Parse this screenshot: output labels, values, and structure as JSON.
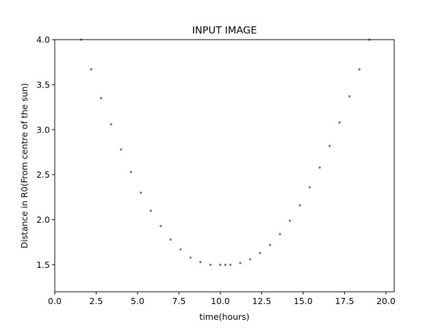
{
  "chart_data": {
    "type": "scatter",
    "title": "INPUT IMAGE",
    "xlabel": "time(hours)",
    "ylabel": "Distance in R0(From centre of the sun)",
    "xlim": [
      0.0,
      20.5
    ],
    "ylim": [
      1.2,
      4.0
    ],
    "xticks": [
      0.0,
      2.5,
      5.0,
      7.5,
      10.0,
      12.5,
      15.0,
      17.5,
      20.0
    ],
    "xtick_labels": [
      "0.0",
      "2.5",
      "5.0",
      "7.5",
      "10.0",
      "12.5",
      "15.0",
      "17.5",
      "20.0"
    ],
    "yticks": [
      1.5,
      2.0,
      2.5,
      3.0,
      3.5,
      4.0
    ],
    "ytick_labels": [
      "1.5",
      "2.0",
      "2.5",
      "3.0",
      "3.5",
      "4.0"
    ],
    "grid": false,
    "marker_color": "#000000",
    "series": [
      {
        "x": [
          1.6,
          2.2,
          2.8,
          3.4,
          4.0,
          4.6,
          5.2,
          5.8,
          6.4,
          7.0,
          7.6,
          8.2,
          8.8,
          9.4,
          10.0,
          10.3,
          10.6,
          11.2,
          11.8,
          12.4,
          13.0,
          13.6,
          14.2,
          14.8,
          15.4,
          16.0,
          16.6,
          17.2,
          17.8,
          18.4,
          19.0
        ],
        "y": [
          4.0,
          3.67,
          3.35,
          3.06,
          2.78,
          2.53,
          2.3,
          2.1,
          1.93,
          1.78,
          1.67,
          1.58,
          1.53,
          1.5,
          1.5,
          1.5,
          1.5,
          1.52,
          1.56,
          1.63,
          1.72,
          1.84,
          1.99,
          2.16,
          2.36,
          2.58,
          2.82,
          3.08,
          3.37,
          3.67,
          4.0
        ]
      }
    ]
  }
}
